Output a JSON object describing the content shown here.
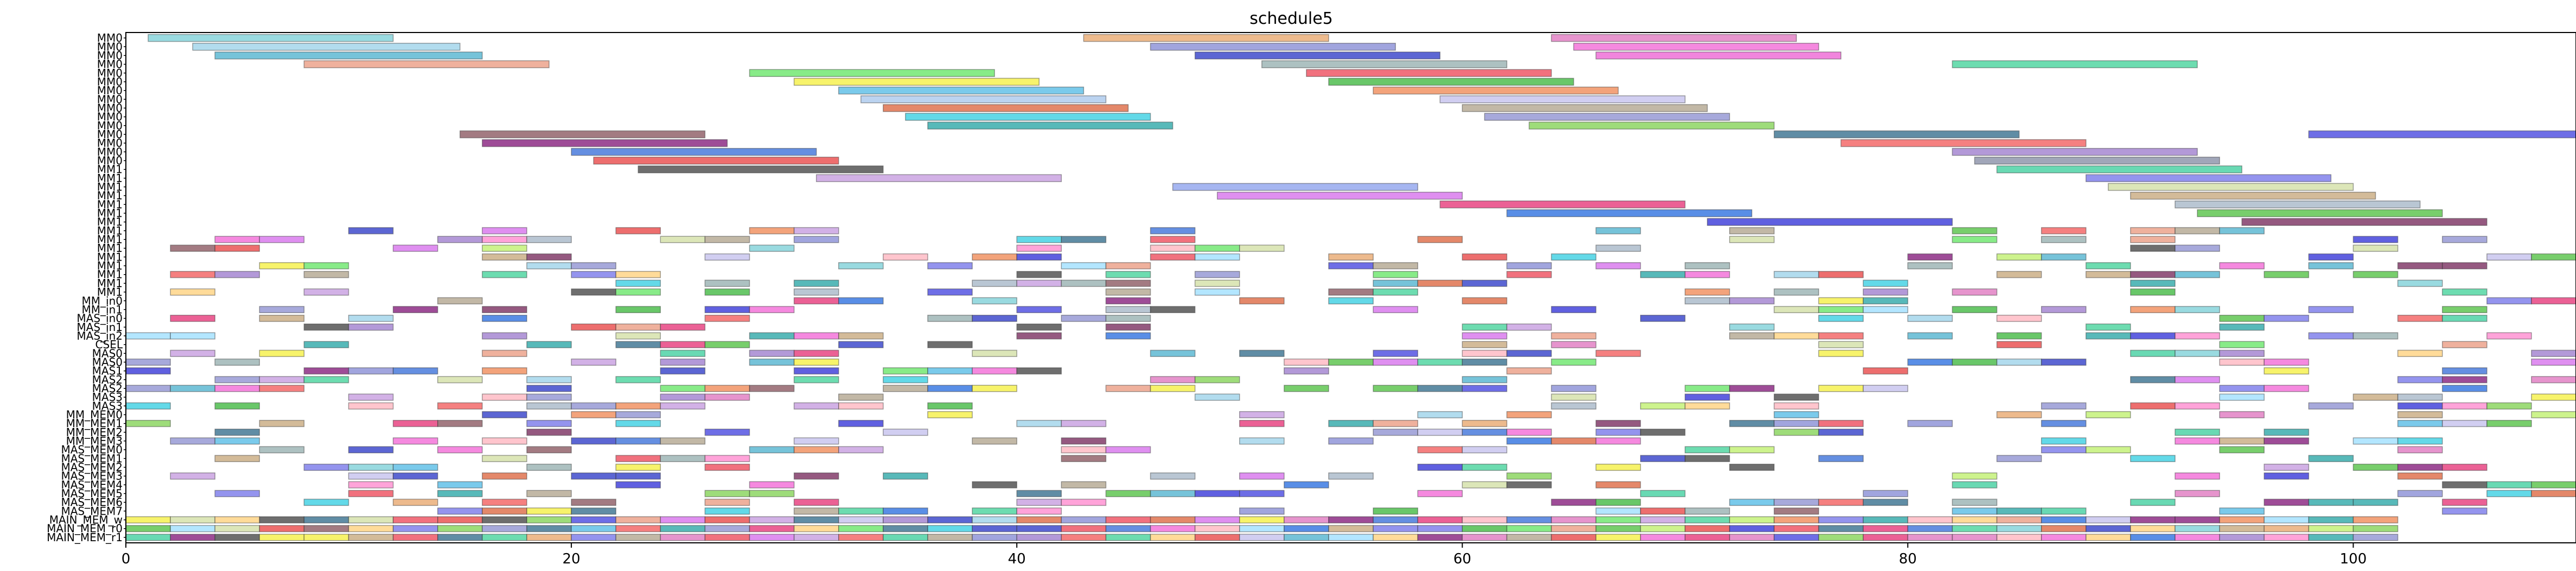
{
  "chart_data": {
    "type": "gantt",
    "title": "schedule5",
    "xlabel": "",
    "ylabel": "",
    "xlim": [
      0,
      110
    ],
    "x_ticks": [
      0,
      20,
      40,
      60,
      80,
      100
    ],
    "grid": false,
    "rows": [
      "MM0",
      "MM0",
      "MM0",
      "MM0",
      "MM0",
      "MM0",
      "MM0",
      "MM0",
      "MM0",
      "MM0",
      "MM0",
      "MM0",
      "MM0",
      "MM0",
      "MM0",
      "MM1",
      "MM1",
      "MM1",
      "MM1",
      "MM1",
      "MM1",
      "MM1",
      "MM1",
      "MM1",
      "MM1",
      "MM1",
      "MM1",
      "MM1",
      "MM1",
      "MM1",
      "MM_in0",
      "MM_in1",
      "MAS_in0",
      "MAS_in1",
      "MAS_in2",
      "CSEL",
      "MAS0",
      "MAS0",
      "MAS1",
      "MAS2",
      "MAS2",
      "MAS3",
      "MAS3",
      "MM_MEM0",
      "MM_MEM1",
      "MM_MEM2",
      "MM_MEM3",
      "MAS_MEM0",
      "MAS_MEM1",
      "MAS_MEM2",
      "MAS_MEM3",
      "MAS_MEM4",
      "MAS_MEM5",
      "MAS_MEM6",
      "MAS_MEM7",
      "MAIN_MEM_w",
      "MAIN_MEM_r0",
      "MAIN_MEM_r1"
    ],
    "tasks": [
      {
        "row": 0,
        "start": 1,
        "end": 12,
        "color": "#7fd1d8"
      },
      {
        "row": 0,
        "start": 43,
        "end": 54,
        "color": "#e8a970"
      },
      {
        "row": 0,
        "start": 64,
        "end": 75,
        "color": "#e079c0"
      },
      {
        "row": 1,
        "start": 3,
        "end": 15,
        "color": "#9fd3ea"
      },
      {
        "row": 1,
        "start": 46,
        "end": 57,
        "color": "#8a8fd6"
      },
      {
        "row": 1,
        "start": 65,
        "end": 76,
        "color": "#f26bd7"
      },
      {
        "row": 2,
        "start": 4,
        "end": 16,
        "color": "#54b4d0"
      },
      {
        "row": 2,
        "start": 48,
        "end": 59,
        "color": "#3340c8"
      },
      {
        "row": 2,
        "start": 66,
        "end": 77,
        "color": "#ee67d4"
      },
      {
        "row": 3,
        "start": 8,
        "end": 19,
        "color": "#eb9e85"
      },
      {
        "row": 3,
        "start": 51,
        "end": 62,
        "color": "#98b2b2"
      },
      {
        "row": 3,
        "start": 82,
        "end": 93,
        "color": "#49d39c"
      },
      {
        "row": 4,
        "start": 28,
        "end": 39,
        "color": "#6ae66a"
      },
      {
        "row": 4,
        "start": 53,
        "end": 64,
        "color": "#ee4d5e"
      },
      {
        "row": 5,
        "start": 30,
        "end": 41,
        "color": "#f5f046"
      },
      {
        "row": 5,
        "start": 54,
        "end": 65,
        "color": "#44b944"
      },
      {
        "row": 6,
        "start": 32,
        "end": 43,
        "color": "#59bde6"
      },
      {
        "row": 6,
        "start": 56,
        "end": 67,
        "color": "#f08c5a"
      },
      {
        "row": 7,
        "start": 33,
        "end": 44,
        "color": "#aac8ec"
      },
      {
        "row": 7,
        "start": 59,
        "end": 70,
        "color": "#c6c2ee"
      },
      {
        "row": 8,
        "start": 34,
        "end": 45,
        "color": "#dd6a45"
      },
      {
        "row": 8,
        "start": 60,
        "end": 71,
        "color": "#b3a690"
      },
      {
        "row": 9,
        "start": 35,
        "end": 46,
        "color": "#3ccfe2"
      },
      {
        "row": 9,
        "start": 61,
        "end": 72,
        "color": "#9193d2"
      },
      {
        "row": 10,
        "start": 36,
        "end": 47,
        "color": "#2ea8a8"
      },
      {
        "row": 10,
        "start": 63,
        "end": 74,
        "color": "#86d359"
      },
      {
        "row": 11,
        "start": 15,
        "end": 26,
        "color": "#8c5a63"
      },
      {
        "row": 11,
        "start": 74,
        "end": 85,
        "color": "#38708f"
      },
      {
        "row": 11,
        "start": 98,
        "end": 110,
        "color": "#4a4ae0"
      },
      {
        "row": 12,
        "start": 16,
        "end": 27,
        "color": "#861f7d"
      },
      {
        "row": 12,
        "start": 77,
        "end": 88,
        "color": "#f26060"
      },
      {
        "row": 13,
        "start": 20,
        "end": 31,
        "color": "#3e73d9"
      },
      {
        "row": 13,
        "start": 82,
        "end": 93,
        "color": "#a07fce"
      },
      {
        "row": 14,
        "start": 21,
        "end": 32,
        "color": "#e84a4a"
      },
      {
        "row": 14,
        "start": 83,
        "end": 94,
        "color": "#8a90a8"
      },
      {
        "row": 15,
        "start": 23,
        "end": 34,
        "color": "#4a4a4a"
      },
      {
        "row": 15,
        "start": 84,
        "end": 95,
        "color": "#44cfa0"
      },
      {
        "row": 16,
        "start": 31,
        "end": 42,
        "color": "#c79ee0"
      },
      {
        "row": 16,
        "start": 88,
        "end": 99,
        "color": "#7979ea"
      },
      {
        "row": 17,
        "start": 47,
        "end": 58,
        "color": "#90a4ee"
      },
      {
        "row": 17,
        "start": 89,
        "end": 100,
        "color": "#d3e0a6"
      },
      {
        "row": 18,
        "start": 49,
        "end": 60,
        "color": "#d773ec"
      },
      {
        "row": 18,
        "start": 90,
        "end": 101,
        "color": "#c8aa80"
      },
      {
        "row": 19,
        "start": 59,
        "end": 70,
        "color": "#e63a7a"
      },
      {
        "row": 19,
        "start": 92,
        "end": 103,
        "color": "#a8b8c8"
      },
      {
        "row": 20,
        "start": 62,
        "end": 73,
        "color": "#2f72e0"
      },
      {
        "row": 20,
        "start": 93,
        "end": 104,
        "color": "#56c247"
      },
      {
        "row": 21,
        "start": 71,
        "end": 82,
        "color": "#3838d8"
      },
      {
        "row": 21,
        "start": 95,
        "end": 106,
        "color": "#7a3060"
      }
    ],
    "block_rows": {
      "first_row": 22,
      "count": 36,
      "unit": 2,
      "palette": [
        "#7fd1d8",
        "#e8a970",
        "#e079c0",
        "#9fd3ea",
        "#8a8fd6",
        "#f26bd7",
        "#54b4d0",
        "#3340c8",
        "#eb9e85",
        "#98b2b2",
        "#49d39c",
        "#6ae66a",
        "#ee4d5e",
        "#f5f046",
        "#44b944",
        "#59bde6",
        "#f08c5a",
        "#c6c2ee",
        "#dd6a45",
        "#b3a690",
        "#3ccfe2",
        "#9193d2",
        "#2ea8a8",
        "#86d359",
        "#8c5a63",
        "#38708f",
        "#4a4ae0",
        "#861f7d",
        "#f26060",
        "#3e73d9",
        "#a07fce",
        "#e84a4a",
        "#4a4a4a",
        "#44cfa0",
        "#c79ee0",
        "#7979ea",
        "#d3e0a6",
        "#d773ec",
        "#c8aa80",
        "#e63a7a",
        "#a8b8c8",
        "#2f72e0",
        "#56c247",
        "#3838d8",
        "#7a3060",
        "#ffb6c1",
        "#c0f070",
        "#ffd27f",
        "#a0e0ff",
        "#ff8ccf"
      ],
      "density": 0.32,
      "seed": 5,
      "dense_rows": [
        55,
        56,
        57
      ],
      "dense_end": 103
    }
  }
}
